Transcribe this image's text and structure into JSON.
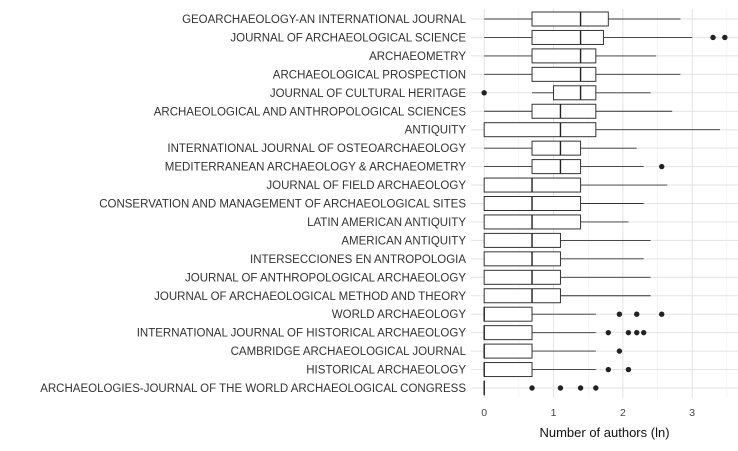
{
  "chart_data": {
    "type": "boxplot",
    "xlabel": "Number of authors (ln)",
    "ylabel": "",
    "xlim": [
      -0.19,
      3.66
    ],
    "xticks": [
      0,
      1,
      2,
      3
    ],
    "grid": true,
    "legend": "none",
    "categories": [
      "GEOARCHAEOLOGY-AN INTERNATIONAL JOURNAL",
      "JOURNAL OF ARCHAEOLOGICAL SCIENCE",
      "ARCHAEOMETRY",
      "ARCHAEOLOGICAL PROSPECTION",
      "JOURNAL OF CULTURAL HERITAGE",
      "ARCHAEOLOGICAL AND ANTHROPOLOGICAL SCIENCES",
      "ANTIQUITY",
      "INTERNATIONAL JOURNAL OF OSTEOARCHAEOLOGY",
      "MEDITERRANEAN ARCHAEOLOGY & ARCHAEOMETRY",
      "JOURNAL OF FIELD ARCHAEOLOGY",
      "CONSERVATION AND MANAGEMENT OF ARCHAEOLOGICAL SITES",
      "LATIN AMERICAN ANTIQUITY",
      "AMERICAN ANTIQUITY",
      "INTERSECCIONES EN ANTROPOLOGIA",
      "JOURNAL OF ANTHROPOLOGICAL ARCHAEOLOGY",
      "JOURNAL OF ARCHAEOLOGICAL METHOD AND THEORY",
      "WORLD ARCHAEOLOGY",
      "INTERNATIONAL JOURNAL OF HISTORICAL ARCHAEOLOGY",
      "CAMBRIDGE ARCHAEOLOGICAL JOURNAL",
      "HISTORICAL ARCHAEOLOGY",
      "ARCHAEOLOGIES-JOURNAL OF THE WORLD ARCHAEOLOGICAL CONGRESS"
    ],
    "boxes": [
      {
        "min": 0,
        "q1": 0.69,
        "median": 1.39,
        "q3": 1.79,
        "max": 2.83,
        "outliers": []
      },
      {
        "min": 0,
        "q1": 0.69,
        "median": 1.39,
        "q3": 1.72,
        "max": 3.0,
        "outliers": [
          3.3,
          3.47
        ]
      },
      {
        "min": 0,
        "q1": 0.69,
        "median": 1.39,
        "q3": 1.61,
        "max": 2.48,
        "outliers": []
      },
      {
        "min": 0,
        "q1": 0.69,
        "median": 1.39,
        "q3": 1.61,
        "max": 2.83,
        "outliers": []
      },
      {
        "min": 0.69,
        "q1": 1.0,
        "median": 1.39,
        "q3": 1.61,
        "max": 2.4,
        "outliers": [
          0
        ]
      },
      {
        "min": 0,
        "q1": 0.69,
        "median": 1.1,
        "q3": 1.61,
        "max": 2.71,
        "outliers": []
      },
      {
        "min": 0,
        "q1": 0,
        "median": 1.1,
        "q3": 1.61,
        "max": 3.4,
        "outliers": []
      },
      {
        "min": 0,
        "q1": 0.69,
        "median": 1.1,
        "q3": 1.39,
        "max": 2.2,
        "outliers": []
      },
      {
        "min": 0,
        "q1": 0.69,
        "median": 1.1,
        "q3": 1.39,
        "max": 2.3,
        "outliers": [
          2.56
        ]
      },
      {
        "min": 0,
        "q1": 0,
        "median": 0.69,
        "q3": 1.39,
        "max": 2.64,
        "outliers": []
      },
      {
        "min": 0,
        "q1": 0,
        "median": 0.69,
        "q3": 1.39,
        "max": 2.3,
        "outliers": []
      },
      {
        "min": 0,
        "q1": 0,
        "median": 0.69,
        "q3": 1.39,
        "max": 2.08,
        "outliers": []
      },
      {
        "min": 0,
        "q1": 0,
        "median": 0.69,
        "q3": 1.1,
        "max": 2.4,
        "outliers": []
      },
      {
        "min": 0,
        "q1": 0,
        "median": 0.69,
        "q3": 1.1,
        "max": 2.3,
        "outliers": []
      },
      {
        "min": 0,
        "q1": 0,
        "median": 0.69,
        "q3": 1.1,
        "max": 2.4,
        "outliers": []
      },
      {
        "min": 0,
        "q1": 0,
        "median": 0.69,
        "q3": 1.1,
        "max": 2.4,
        "outliers": []
      },
      {
        "min": 0,
        "q1": 0,
        "median": 0,
        "q3": 0.69,
        "max": 1.61,
        "outliers": [
          1.95,
          2.2,
          2.56
        ]
      },
      {
        "min": 0,
        "q1": 0,
        "median": 0,
        "q3": 0.69,
        "max": 1.61,
        "outliers": [
          1.79,
          2.08,
          2.2,
          2.3
        ]
      },
      {
        "min": 0,
        "q1": 0,
        "median": 0,
        "q3": 0.69,
        "max": 1.61,
        "outliers": [
          1.95
        ]
      },
      {
        "min": 0,
        "q1": 0,
        "median": 0,
        "q3": 0.69,
        "max": 1.61,
        "outliers": [
          1.79,
          2.08
        ]
      },
      {
        "min": 0,
        "q1": 0,
        "median": 0,
        "q3": 0,
        "max": 0,
        "outliers": [
          0.69,
          1.1,
          1.39,
          1.61
        ]
      }
    ],
    "colors": {
      "box_fill": "#ffffff",
      "box_stroke": "#333333",
      "outlier": "#222222",
      "grid": "#e3e3e3",
      "background": "#ffffff"
    }
  }
}
